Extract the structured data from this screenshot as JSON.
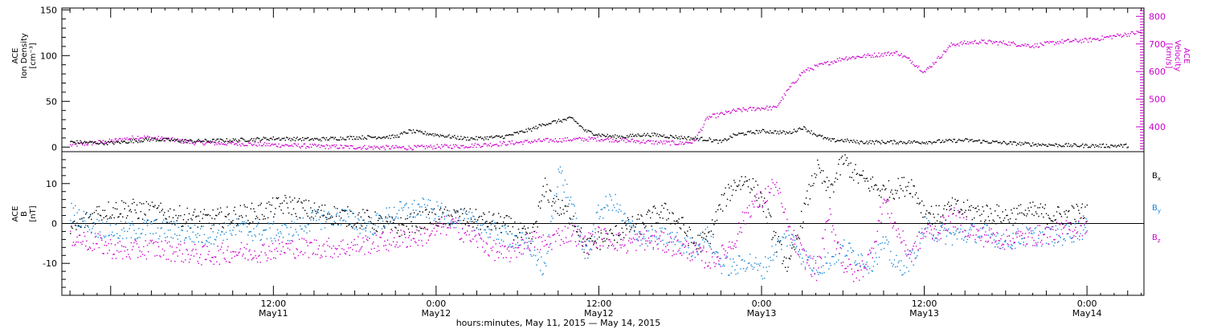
{
  "figure": {
    "footer_label": "hours:minutes, May 11, 2015 — May 14, 2015"
  },
  "colors": {
    "axes": "#000000",
    "density": "#000000",
    "velocity": "#cc00cc",
    "bx": "#000000",
    "by": "#1a88d6",
    "bz": "#cc00cc"
  },
  "chart_data": [
    {
      "type": "scatter",
      "panel": "top",
      "left_axis": {
        "label_lines": [
          "ACE",
          "Ion Density",
          "[cm⁻³]"
        ],
        "ylim": [
          -5,
          152
        ],
        "ticks": [
          "0",
          "50",
          "100",
          "150"
        ]
      },
      "right_axis": {
        "label_lines": [
          "ACE",
          "Velocity",
          "[km/s]"
        ],
        "ylim": [
          310,
          830
        ],
        "ticks": [
          "400",
          "500",
          "600",
          "700",
          "800"
        ],
        "color": "#cc00cc"
      },
      "x_unit": "hours since 2015-05-10 00:00 UT",
      "xlim": [
        20.4,
        100.2
      ],
      "series": [
        {
          "name": "Ion Density",
          "axis": "left",
          "color": "#000000",
          "x": [
            21,
            24,
            27,
            30,
            33,
            36,
            39,
            42,
            45,
            46,
            48,
            50,
            51,
            53,
            55,
            56,
            58,
            59,
            60,
            61,
            62,
            63,
            64,
            66,
            68,
            69,
            70,
            72,
            74,
            75,
            76,
            77,
            78,
            79,
            81,
            84,
            87,
            90,
            93,
            96,
            99
          ],
          "y": [
            6,
            5,
            9,
            7,
            8,
            10,
            9,
            11,
            12,
            18,
            14,
            10,
            10,
            12,
            20,
            26,
            32,
            18,
            14,
            12,
            12,
            14,
            14,
            11,
            9,
            6,
            14,
            18,
            16,
            22,
            14,
            8,
            8,
            6,
            6,
            6,
            8,
            5,
            3,
            2,
            2
          ]
        },
        {
          "name": "Velocity",
          "axis": "right",
          "color": "#cc00cc",
          "x": [
            21,
            24,
            26,
            28,
            30,
            32,
            34,
            36,
            38,
            40,
            42,
            44,
            46,
            48,
            50,
            52,
            54,
            56,
            58,
            60,
            62,
            64,
            66,
            67,
            68,
            70,
            72,
            73,
            74,
            75,
            76,
            78,
            80,
            82,
            83,
            84,
            86,
            88,
            90,
            92,
            94,
            96,
            98,
            100
          ],
          "y": [
            335,
            350,
            365,
            358,
            345,
            342,
            340,
            336,
            333,
            330,
            328,
            327,
            326,
            330,
            332,
            338,
            345,
            352,
            356,
            358,
            352,
            346,
            342,
            348,
            435,
            460,
            470,
            470,
            540,
            600,
            620,
            650,
            660,
            670,
            640,
            600,
            700,
            710,
            705,
            695,
            710,
            715,
            730,
            745
          ]
        }
      ]
    },
    {
      "type": "scatter",
      "panel": "bottom",
      "left_axis": {
        "label_lines": [
          "ACE",
          "B",
          "[nT]"
        ],
        "ylim": [
          -18,
          18
        ],
        "ticks": [
          "-10",
          "0",
          "10"
        ]
      },
      "x_unit": "hours since 2015-05-10 00:00 UT",
      "xlim": [
        20.4,
        100.2
      ],
      "x_ticks": [
        {
          "value": 36,
          "time": "12:00",
          "date": "May11"
        },
        {
          "value": 48,
          "time": "0:00",
          "date": "May12"
        },
        {
          "value": 60,
          "time": "12:00",
          "date": "May12"
        },
        {
          "value": 72,
          "time": "0:00",
          "date": "May13"
        },
        {
          "value": 84,
          "time": "12:00",
          "date": "May13"
        },
        {
          "value": 96,
          "time": "0:00",
          "date": "May14"
        }
      ],
      "series": [
        {
          "name": "Bx",
          "label_main": "B",
          "label_sub": "x",
          "color": "#000000",
          "x": [
            21,
            23,
            25,
            27,
            29,
            31,
            33,
            35,
            37,
            39,
            41,
            43,
            45,
            47,
            49,
            51,
            53,
            54,
            55,
            56,
            57,
            58,
            59,
            60,
            61,
            62,
            63,
            64,
            65,
            66,
            67,
            68,
            69,
            70,
            71,
            72,
            73,
            74,
            75,
            76,
            77,
            78,
            79,
            80,
            81,
            82,
            83,
            84,
            85,
            86,
            88,
            90,
            92,
            94,
            96
          ],
          "y": [
            -2,
            3,
            4,
            3,
            2,
            1,
            2,
            3,
            5,
            3,
            2,
            1,
            -1,
            1,
            2,
            1,
            0,
            -2,
            -4,
            9,
            4,
            2,
            -6,
            -4,
            -3,
            -1,
            0,
            2,
            3,
            0,
            -5,
            -4,
            5,
            10,
            11,
            6,
            -4,
            -11,
            2,
            14,
            8,
            16,
            12,
            10,
            8,
            9,
            10,
            3,
            2,
            4,
            3,
            2,
            3,
            2,
            3
          ]
        },
        {
          "name": "By",
          "label_main": "B",
          "label_sub": "y",
          "color": "#1a88d6",
          "x": [
            21,
            23,
            25,
            27,
            29,
            31,
            33,
            35,
            37,
            39,
            41,
            43,
            45,
            47,
            49,
            51,
            53,
            54,
            55,
            56,
            57,
            58,
            59,
            60,
            61,
            62,
            63,
            64,
            65,
            66,
            67,
            68,
            69,
            70,
            71,
            72,
            73,
            74,
            75,
            76,
            77,
            78,
            79,
            80,
            81,
            82,
            83,
            84,
            85,
            86,
            88,
            90,
            92,
            94,
            96
          ],
          "y": [
            3,
            -1,
            -2,
            -1,
            -2,
            -3,
            -1,
            -2,
            -2,
            1,
            2,
            -1,
            3,
            4,
            2,
            0,
            -3,
            -4,
            -6,
            -12,
            14,
            4,
            -8,
            3,
            6,
            0,
            -3,
            -4,
            -3,
            -5,
            -6,
            -3,
            -10,
            -11,
            -9,
            -12,
            -6,
            -3,
            -8,
            -11,
            -9,
            -6,
            -8,
            -10,
            -5,
            -11,
            -9,
            -1,
            -2,
            -3,
            -2,
            -4,
            -3,
            -3,
            -1
          ]
        },
        {
          "name": "Bz",
          "label_main": "B",
          "label_sub": "z",
          "color": "#cc00cc",
          "x": [
            21,
            23,
            25,
            27,
            29,
            31,
            33,
            35,
            37,
            39,
            41,
            43,
            45,
            47,
            49,
            51,
            53,
            54,
            55,
            56,
            57,
            58,
            59,
            60,
            61,
            62,
            63,
            64,
            65,
            66,
            67,
            68,
            69,
            70,
            71,
            72,
            73,
            74,
            75,
            76,
            77,
            78,
            79,
            80,
            81,
            82,
            83,
            84,
            85,
            86,
            88,
            90,
            92,
            94,
            96
          ],
          "y": [
            -3,
            -5,
            -7,
            -6,
            -7,
            -8,
            -7,
            -7,
            -6,
            -6,
            -6,
            -5,
            -4,
            -3,
            0,
            -4,
            -8,
            -6,
            -4,
            -5,
            -3,
            -2,
            -5,
            -3,
            -4,
            -5,
            -4,
            -4,
            -5,
            -6,
            -7,
            -9,
            -8,
            -4,
            4,
            6,
            10,
            -2,
            -8,
            -12,
            2,
            -10,
            -13,
            -8,
            6,
            -2,
            -8,
            -2,
            -2,
            2,
            -3,
            -4,
            -3,
            -2,
            0
          ]
        }
      ]
    }
  ]
}
